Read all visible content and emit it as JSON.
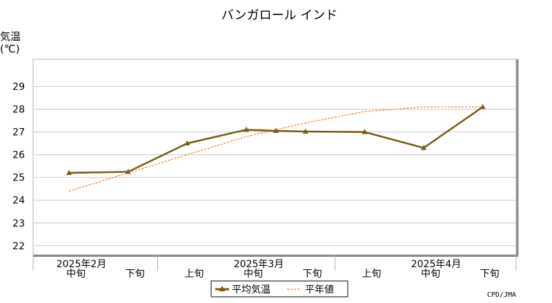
{
  "chart_data": {
    "type": "line",
    "title": "バンガロール インド",
    "ylabel_line1": "気温",
    "ylabel_line2": "(℃)",
    "ylim": [
      21.6,
      30.2
    ],
    "yticks": [
      22,
      23,
      24,
      25,
      26,
      27,
      28,
      29
    ],
    "grid": true,
    "periods": [
      {
        "dekad": "中旬",
        "month": "2025年2月"
      },
      {
        "dekad": "下旬",
        "month": ""
      },
      {
        "dekad": "上旬",
        "month": ""
      },
      {
        "dekad": "中旬",
        "month": "2025年3月"
      },
      {
        "dekad": "下旬",
        "month": ""
      },
      {
        "dekad": "上旬",
        "month": ""
      },
      {
        "dekad": "中旬",
        "month": "2025年4月"
      },
      {
        "dekad": "下旬",
        "month": ""
      }
    ],
    "series": [
      {
        "name": "平均気温",
        "color": "#7a5c14",
        "style": "solid-triangle-markers",
        "points": [
          [
            0,
            25.2
          ],
          [
            1,
            25.25
          ],
          [
            2,
            26.5
          ],
          [
            3,
            27.1
          ],
          [
            3.5,
            27.05
          ],
          [
            4,
            27.02
          ],
          [
            5,
            27.0
          ],
          [
            6,
            26.3
          ],
          [
            7,
            28.1
          ]
        ]
      },
      {
        "name": "平年値",
        "color": "#f07820",
        "style": "dashed",
        "points": [
          [
            0,
            24.4
          ],
          [
            1,
            25.2
          ],
          [
            2,
            26.0
          ],
          [
            3,
            26.8
          ],
          [
            4,
            27.4
          ],
          [
            5,
            27.9
          ],
          [
            6,
            28.1
          ],
          [
            7,
            28.1
          ]
        ]
      }
    ],
    "legend": {
      "position": "bottom-center"
    },
    "credit": "CPD/JMA"
  }
}
